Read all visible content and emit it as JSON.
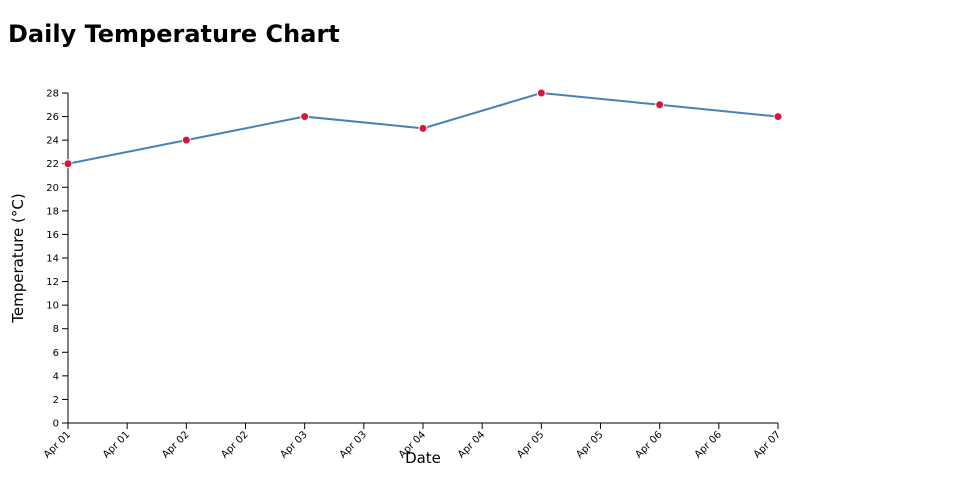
{
  "title": "Daily Temperature Chart",
  "colors": {
    "line": "#4682b4",
    "point": "#dc143c",
    "axis": "#000000"
  },
  "chart_data": {
    "type": "line",
    "title": "Daily Temperature Chart",
    "xlabel": "Date",
    "ylabel": "Temperature (°C)",
    "ylim": [
      0,
      28
    ],
    "xlim": [
      "2024-04-01",
      "2024-04-07"
    ],
    "y_ticks": [
      0,
      2,
      4,
      6,
      8,
      10,
      12,
      14,
      16,
      18,
      20,
      22,
      24,
      26,
      28
    ],
    "x_tick_labels": [
      "Apr 01",
      "Apr 01",
      "Apr 02",
      "Apr 02",
      "Apr 03",
      "Apr 03",
      "Apr 04",
      "Apr 04",
      "Apr 05",
      "Apr 05",
      "Apr 06",
      "Apr 06",
      "Apr 07"
    ],
    "grid": false,
    "x": [
      "Apr 01",
      "Apr 02",
      "Apr 03",
      "Apr 04",
      "Apr 05",
      "Apr 06",
      "Apr 07"
    ],
    "values": [
      22,
      24,
      26,
      25,
      28,
      27,
      26
    ]
  }
}
